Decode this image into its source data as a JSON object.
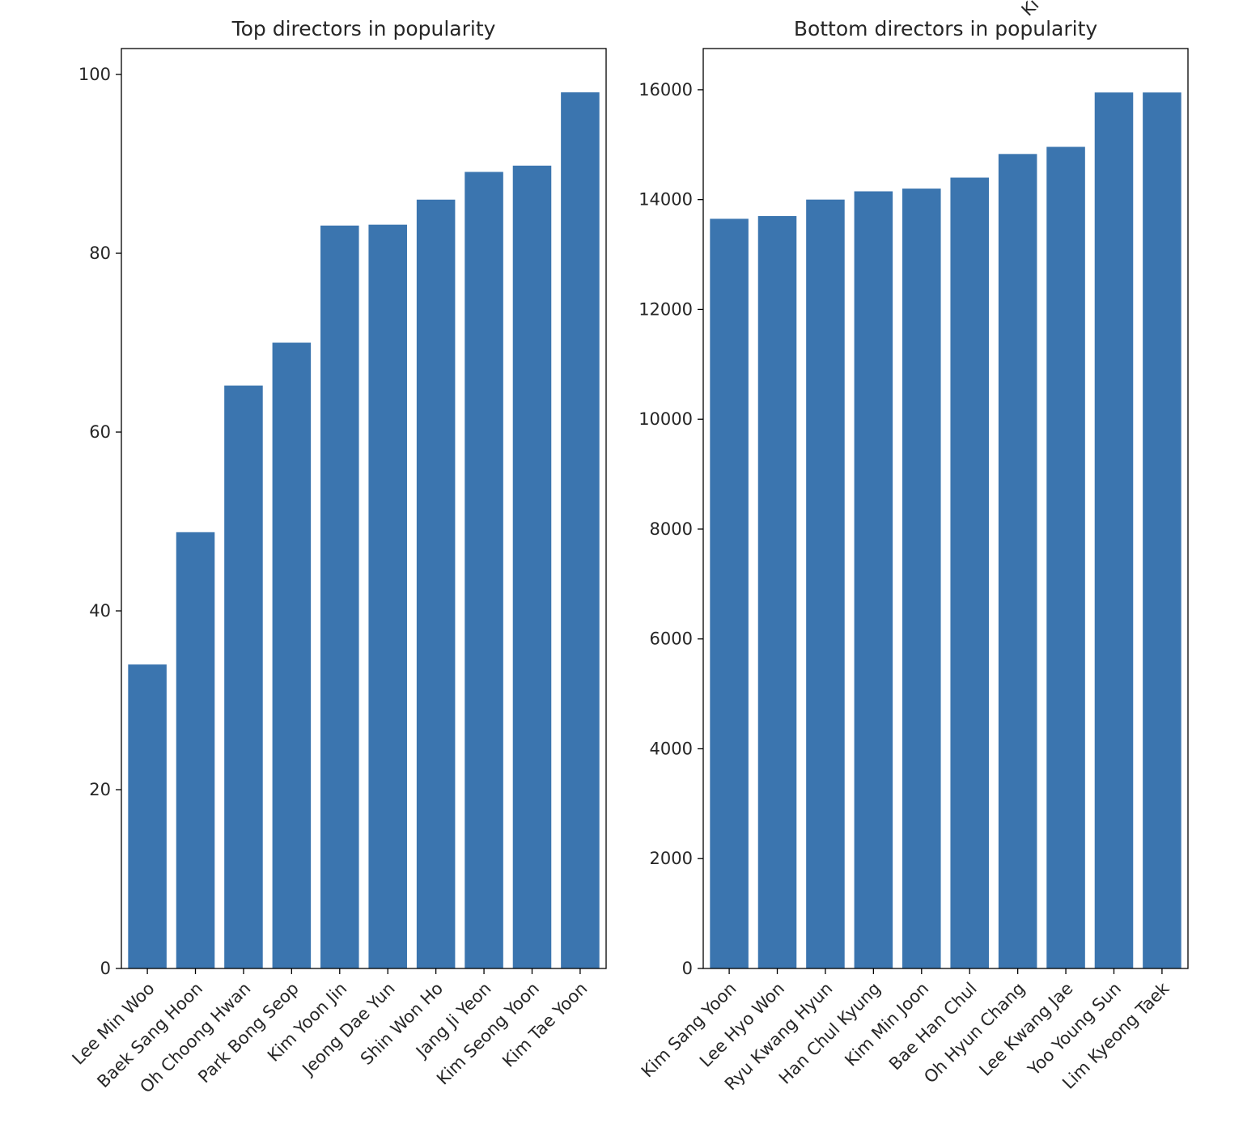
{
  "figure": {
    "stray_label": "Ki"
  },
  "colors": {
    "bar": "#3b75af",
    "axis": "#000000",
    "text": "#262626",
    "background": "#ffffff"
  },
  "chart_data": [
    {
      "type": "bar",
      "title": "Top directors in popularity",
      "xlabel": "",
      "ylabel": "",
      "categories": [
        "Lee Min Woo",
        "Baek Sang Hoon",
        "Oh Choong Hwan",
        "Park Bong Seop",
        "Kim Yoon Jin",
        "Jeong Dae Yun",
        "Shin Won Ho",
        "Jang Ji Yeon",
        "Kim Seong Yoon",
        "Kim Tae Yoon"
      ],
      "values": [
        34,
        48.8,
        65.2,
        70,
        83.1,
        83.2,
        86,
        89.1,
        89.8,
        98
      ],
      "ylim": [
        0,
        102.9
      ],
      "yticks": [
        0,
        20,
        40,
        60,
        80,
        100
      ],
      "grid": false,
      "legend": "none"
    },
    {
      "type": "bar",
      "title": "Bottom directors in popularity",
      "xlabel": "",
      "ylabel": "",
      "categories": [
        "Kim Sang Yoon",
        "Lee Hyo Won",
        "Ryu Kwang Hyun",
        "Han Chul Kyung",
        "Kim Min Joon",
        "Bae Han Chul",
        "Oh Hyun Chang",
        "Lee Kwang Jae",
        "Yoo Young Sun",
        "Lim Kyeong Taek"
      ],
      "values": [
        13650,
        13700,
        14000,
        14150,
        14200,
        14400,
        14830,
        14960,
        15950,
        15950
      ],
      "ylim": [
        0,
        16750
      ],
      "yticks": [
        0,
        2000,
        4000,
        6000,
        8000,
        10000,
        12000,
        14000,
        16000
      ],
      "grid": false,
      "legend": "none"
    }
  ]
}
